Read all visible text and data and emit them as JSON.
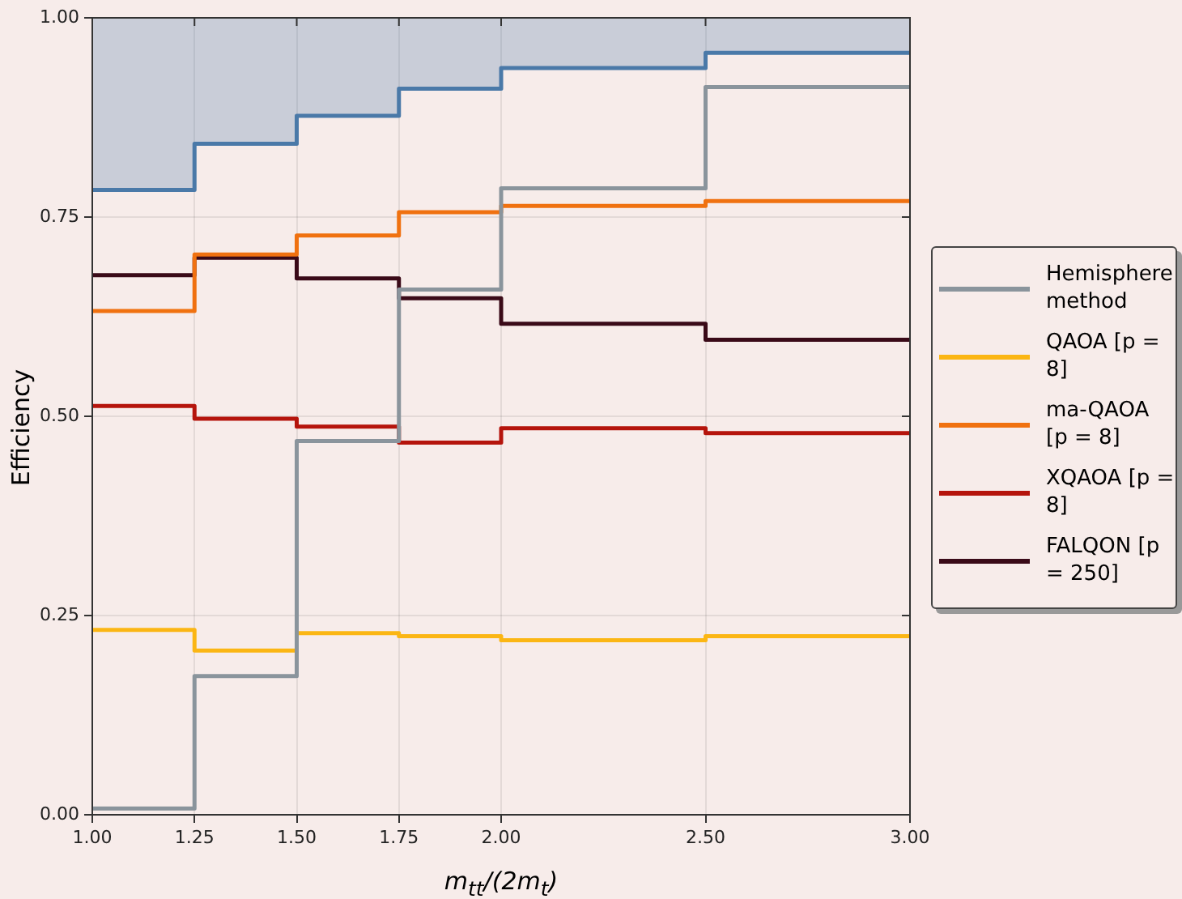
{
  "chart_data": {
    "type": "step",
    "xlabel": "m$_{tt}$/(2m$_{t}$)",
    "ylabel": "Efficiency",
    "x": [
      1.0,
      1.25,
      1.5,
      1.75,
      2.0,
      2.5,
      3.0
    ],
    "xlim": [
      1.0,
      3.0
    ],
    "xticks": [
      {
        "value": 1.0,
        "label": "1.00"
      },
      {
        "value": 1.25,
        "label": "1.25"
      },
      {
        "value": 1.5,
        "label": "1.50"
      },
      {
        "value": 1.75,
        "label": "1.75"
      },
      {
        "value": 2.0,
        "label": "2.00"
      },
      {
        "value": 2.5,
        "label": "2.50"
      },
      {
        "value": 3.0,
        "label": "3.00"
      }
    ],
    "ylim": [
      0,
      1
    ],
    "yticks": [
      {
        "value": 0,
        "label": "0.00"
      },
      {
        "value": 0.25,
        "label": "0.25"
      },
      {
        "value": 0.5,
        "label": "0.50"
      },
      {
        "value": 0.75,
        "label": "0.75"
      },
      {
        "value": 1,
        "label": "1.00"
      }
    ],
    "grid": true,
    "legend": "right",
    "marker": "none",
    "line_style": "solid",
    "series": [
      {
        "color": "#4a79a8",
        "values": [
          0.784,
          0.842,
          0.877,
          0.911,
          0.937,
          0.956,
          0.956
        ],
        "lower": [
          0.784,
          0.842,
          0.877,
          0.911,
          0.937,
          0.956,
          0.956
        ],
        "upper": [
          1,
          1,
          1,
          1,
          1,
          1,
          1
        ]
      },
      {
        "name": "Hemisphere method",
        "color": "#8a949c",
        "values": [
          0.008,
          0.174,
          0.469,
          0.659,
          0.786,
          0.913,
          0.913
        ]
      },
      {
        "name": "QAOA [p = 8]",
        "color": "#fbb614",
        "values": [
          0.232,
          0.206,
          0.228,
          0.224,
          0.219,
          0.224,
          0.224
        ]
      },
      {
        "name": "ma-QAOA [p = 8]",
        "color": "#f07110",
        "values": [
          0.632,
          0.703,
          0.727,
          0.756,
          0.764,
          0.77,
          0.77
        ]
      },
      {
        "name": "XQAOA [p = 8]",
        "color": "#b5140c",
        "values": [
          0.513,
          0.497,
          0.487,
          0.467,
          0.485,
          0.479,
          0.479
        ]
      },
      {
        "name": "FALQON [p = 250]",
        "color": "#3a0a18",
        "values": [
          0.677,
          0.699,
          0.673,
          0.648,
          0.616,
          0.596,
          0.596
        ]
      }
    ]
  }
}
